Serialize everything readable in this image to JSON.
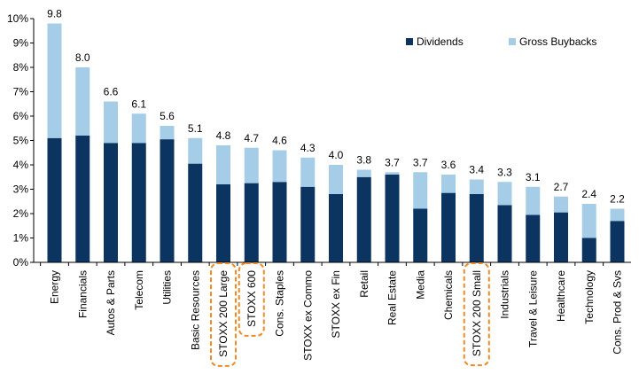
{
  "chart_data": {
    "type": "bar",
    "stacked": true,
    "title": "",
    "xlabel": "",
    "ylabel": "",
    "ylim": [
      0,
      10
    ],
    "yticks": [
      "0%",
      "1%",
      "2%",
      "3%",
      "4%",
      "5%",
      "6%",
      "7%",
      "8%",
      "9%",
      "10%"
    ],
    "grid": false,
    "legend_position": "top-right",
    "categories": [
      "Energy",
      "Financials",
      "Autos & Parts",
      "Telecom",
      "Utilities",
      "Basic Resources",
      "STOXX 200 Large",
      "STOXX 600",
      "Cons. Staples",
      "STOXX ex Commo",
      "STOXX ex Fin",
      "Retail",
      "Real Estate",
      "Media",
      "Chemicals",
      "STOXX 200 Small",
      "Industrials",
      "Travel & Leisure",
      "Healthcare",
      "Technology",
      "Cons. Prod & Svs"
    ],
    "highlighted": [
      "STOXX 200 Large",
      "STOXX 600",
      "STOXX 200 Small"
    ],
    "series": [
      {
        "name": "Dividends",
        "color": "#0b3560",
        "values": [
          5.1,
          5.2,
          4.9,
          4.9,
          5.05,
          4.05,
          3.2,
          3.25,
          3.3,
          3.1,
          2.8,
          3.5,
          3.6,
          2.2,
          2.85,
          2.8,
          2.35,
          1.95,
          2.05,
          1.0,
          1.7
        ]
      },
      {
        "name": "Gross Buybacks",
        "color": "#a6cde8",
        "values": [
          4.7,
          2.8,
          1.7,
          1.2,
          0.55,
          1.05,
          1.6,
          1.45,
          1.3,
          1.2,
          1.2,
          0.3,
          0.1,
          1.5,
          0.75,
          0.6,
          0.95,
          1.15,
          0.65,
          1.4,
          0.5
        ]
      }
    ],
    "totals": [
      "9.8",
      "8.0",
      "6.6",
      "6.1",
      "5.6",
      "5.1",
      "4.8",
      "4.7",
      "4.6",
      "4.3",
      "4.0",
      "3.8",
      "3.7",
      "3.7",
      "3.6",
      "3.4",
      "3.3",
      "3.1",
      "2.7",
      "2.4",
      "2.2"
    ]
  }
}
